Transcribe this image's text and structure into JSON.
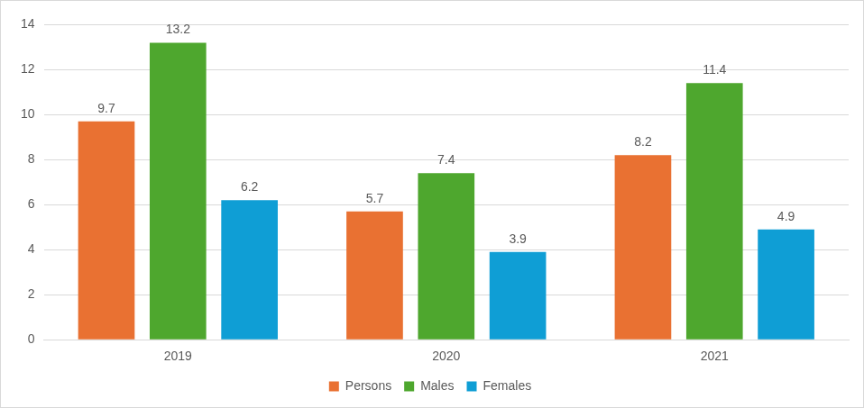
{
  "chart_data": {
    "type": "bar",
    "categories": [
      "2019",
      "2020",
      "2021"
    ],
    "series": [
      {
        "name": "Persons",
        "color": "#E97132",
        "values": [
          9.7,
          5.7,
          8.2
        ]
      },
      {
        "name": "Males",
        "color": "#4EA72E",
        "values": [
          13.2,
          7.4,
          11.4
        ]
      },
      {
        "name": "Females",
        "color": "#0F9ED5",
        "values": [
          6.2,
          3.9,
          4.9
        ]
      }
    ],
    "ylim": [
      0,
      14
    ],
    "yticks": [
      0,
      2,
      4,
      6,
      8,
      10,
      12,
      14
    ],
    "grid": true,
    "legend": "bottom",
    "data_labels": true
  }
}
